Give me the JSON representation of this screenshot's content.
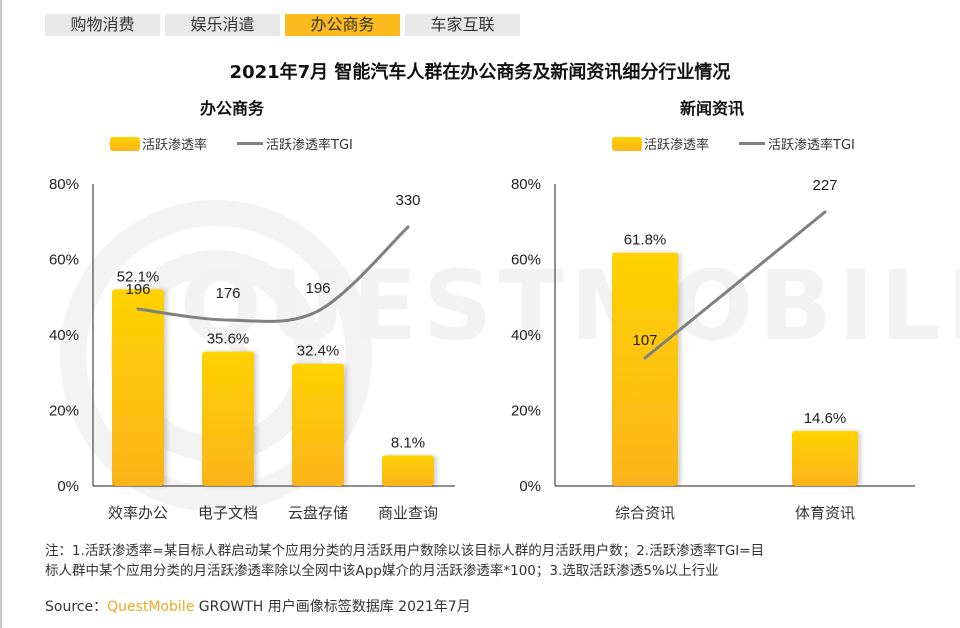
{
  "tabs": [
    {
      "label": "购物消费",
      "active": false
    },
    {
      "label": "娱乐消遣",
      "active": false
    },
    {
      "label": "办公商务",
      "active": true
    },
    {
      "label": "车家互联",
      "active": false
    }
  ],
  "title": "2021年7月 智能汽车人群在办公商务及新闻资讯细分行业情况",
  "watermark": "QUESTMOBILE",
  "colors": {
    "bar_top": "#ffd200",
    "bar_bottom": "#fbb41b",
    "line": "#808080",
    "brand": "#f5a623",
    "active_tab": "#fbbb1f"
  },
  "legend": {
    "bar_label": "活跃渗透率",
    "line_label": "活跃渗透率TGI"
  },
  "chart_data": [
    {
      "type": "bar",
      "title": "办公商务",
      "categories": [
        "效率办公",
        "电子文档",
        "云盘存储",
        "商业查询"
      ],
      "series": [
        {
          "name": "活跃渗透率",
          "type": "bar",
          "values": [
            52.1,
            35.6,
            32.4,
            8.1
          ],
          "labels": [
            "52.1%",
            "35.6%",
            "32.4%",
            "8.1%"
          ]
        },
        {
          "name": "活跃渗透率TGI",
          "type": "line",
          "smooth": true,
          "values": [
            196,
            176,
            196,
            330
          ],
          "labels": [
            "196",
            "176",
            "196",
            "330"
          ]
        }
      ],
      "y_ticks": [
        "0%",
        "20%",
        "40%",
        "60%",
        "80%"
      ],
      "ylim": [
        0,
        80
      ],
      "legend_position": "top",
      "grid": false
    },
    {
      "type": "bar",
      "title": "新闻资讯",
      "categories": [
        "综合资讯",
        "体育资讯"
      ],
      "series": [
        {
          "name": "活跃渗透率",
          "type": "bar",
          "values": [
            61.8,
            14.6
          ],
          "labels": [
            "61.8%",
            "14.6%"
          ]
        },
        {
          "name": "活跃渗透率TGI",
          "type": "line",
          "smooth": false,
          "values": [
            107,
            227
          ],
          "labels": [
            "107",
            "227"
          ]
        }
      ],
      "y_ticks": [
        "0%",
        "20%",
        "40%",
        "60%",
        "80%"
      ],
      "ylim": [
        0,
        80
      ],
      "legend_position": "top",
      "grid": false
    }
  ],
  "note": {
    "line1": "注：1.活跃渗透率=某目标人群启动某个应用分类的月活跃用户数除以该目标人群的月活跃用户数；2.活跃渗透率TGI=目",
    "line2": "标人群中某个应用分类的月活跃渗透率除以全网中该App媒介的月活跃渗透率*100；3.选取活跃渗透5%以上行业"
  },
  "source": {
    "prefix": "Source：",
    "brand": "QuestMobile",
    "suffix": " GROWTH 用户画像标签数据库 2021年7月"
  }
}
